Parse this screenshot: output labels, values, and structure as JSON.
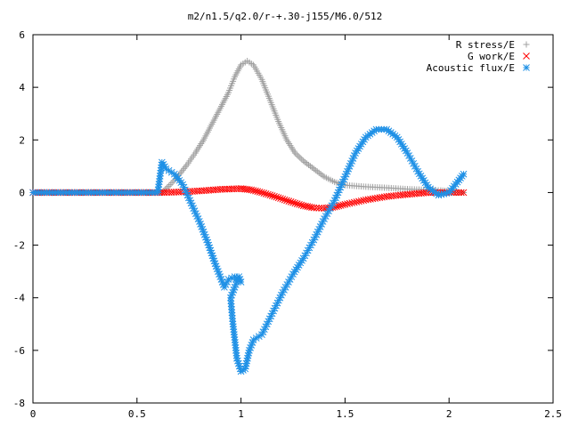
{
  "chart_data": {
    "type": "scatter",
    "title": "m2/n1.5/q2.0/r-+.30-j155/M6.0/512",
    "xlabel": "",
    "ylabel": "",
    "xlim": [
      0,
      2.5
    ],
    "ylim": [
      -8,
      6
    ],
    "x_ticks": [
      "0",
      "0.5",
      "1",
      "1.5",
      "2",
      "2.5"
    ],
    "y_ticks": [
      "6",
      "4",
      "2",
      "0",
      "-2",
      "-4",
      "-6",
      "-8"
    ],
    "grid": false,
    "legend_position": "top-right",
    "series": [
      {
        "name": "R stress/E",
        "marker": "plus",
        "color": "#a0a0a0",
        "points": [
          [
            0.0,
            0.0
          ],
          [
            0.2,
            0.0
          ],
          [
            0.4,
            0.0
          ],
          [
            0.62,
            0.0
          ],
          [
            0.66,
            0.3
          ],
          [
            0.7,
            0.65
          ],
          [
            0.74,
            1.05
          ],
          [
            0.78,
            1.5
          ],
          [
            0.82,
            2.0
          ],
          [
            0.86,
            2.6
          ],
          [
            0.9,
            3.2
          ],
          [
            0.94,
            3.8
          ],
          [
            0.97,
            4.4
          ],
          [
            1.0,
            4.85
          ],
          [
            1.03,
            5.0
          ],
          [
            1.06,
            4.85
          ],
          [
            1.1,
            4.3
          ],
          [
            1.14,
            3.5
          ],
          [
            1.18,
            2.7
          ],
          [
            1.22,
            2.0
          ],
          [
            1.26,
            1.5
          ],
          [
            1.3,
            1.2
          ],
          [
            1.35,
            0.9
          ],
          [
            1.4,
            0.6
          ],
          [
            1.45,
            0.4
          ],
          [
            1.5,
            0.28
          ],
          [
            1.6,
            0.22
          ],
          [
            1.7,
            0.18
          ],
          [
            1.8,
            0.13
          ],
          [
            1.9,
            0.1
          ],
          [
            1.96,
            0.08
          ],
          [
            2.0,
            0.05
          ],
          [
            2.04,
            0.0
          ],
          [
            2.07,
            0.0
          ]
        ]
      },
      {
        "name": "G work/E",
        "marker": "cross",
        "color": "#ff0000",
        "points": [
          [
            0.0,
            0.0
          ],
          [
            0.2,
            0.0
          ],
          [
            0.4,
            0.0
          ],
          [
            0.62,
            0.0
          ],
          [
            0.7,
            0.02
          ],
          [
            0.8,
            0.06
          ],
          [
            0.9,
            0.12
          ],
          [
            1.0,
            0.15
          ],
          [
            1.05,
            0.1
          ],
          [
            1.1,
            0.0
          ],
          [
            1.15,
            -0.12
          ],
          [
            1.2,
            -0.25
          ],
          [
            1.25,
            -0.38
          ],
          [
            1.3,
            -0.5
          ],
          [
            1.35,
            -0.58
          ],
          [
            1.4,
            -0.6
          ],
          [
            1.45,
            -0.55
          ],
          [
            1.5,
            -0.45
          ],
          [
            1.6,
            -0.28
          ],
          [
            1.7,
            -0.15
          ],
          [
            1.8,
            -0.07
          ],
          [
            1.9,
            0.0
          ],
          [
            2.0,
            0.0
          ],
          [
            2.07,
            0.0
          ]
        ]
      },
      {
        "name": "Acoustic flux/E",
        "marker": "star",
        "color": "#1e90e6",
        "points": [
          [
            0.0,
            0.0
          ],
          [
            0.2,
            0.0
          ],
          [
            0.4,
            0.0
          ],
          [
            0.6,
            0.0
          ],
          [
            0.62,
            1.15
          ],
          [
            0.64,
            0.9
          ],
          [
            0.68,
            0.7
          ],
          [
            0.72,
            0.3
          ],
          [
            0.76,
            -0.4
          ],
          [
            0.8,
            -1.1
          ],
          [
            0.84,
            -1.9
          ],
          [
            0.88,
            -2.8
          ],
          [
            0.92,
            -3.6
          ],
          [
            0.94,
            -3.3
          ],
          [
            0.97,
            -3.2
          ],
          [
            1.0,
            -3.4
          ],
          [
            0.99,
            -3.2
          ],
          [
            0.95,
            -4.0
          ],
          [
            0.96,
            -4.9
          ],
          [
            0.97,
            -5.6
          ],
          [
            0.98,
            -6.3
          ],
          [
            1.0,
            -6.8
          ],
          [
            1.02,
            -6.7
          ],
          [
            1.04,
            -6.0
          ],
          [
            1.06,
            -5.6
          ],
          [
            1.1,
            -5.4
          ],
          [
            1.15,
            -4.6
          ],
          [
            1.2,
            -3.8
          ],
          [
            1.25,
            -3.1
          ],
          [
            1.3,
            -2.5
          ],
          [
            1.35,
            -1.8
          ],
          [
            1.4,
            -1.0
          ],
          [
            1.45,
            -0.3
          ],
          [
            1.5,
            0.6
          ],
          [
            1.55,
            1.5
          ],
          [
            1.6,
            2.1
          ],
          [
            1.65,
            2.4
          ],
          [
            1.7,
            2.4
          ],
          [
            1.75,
            2.1
          ],
          [
            1.8,
            1.5
          ],
          [
            1.85,
            0.8
          ],
          [
            1.9,
            0.2
          ],
          [
            1.95,
            -0.1
          ],
          [
            2.0,
            0.0
          ],
          [
            2.04,
            0.4
          ],
          [
            2.07,
            0.7
          ]
        ]
      }
    ]
  }
}
